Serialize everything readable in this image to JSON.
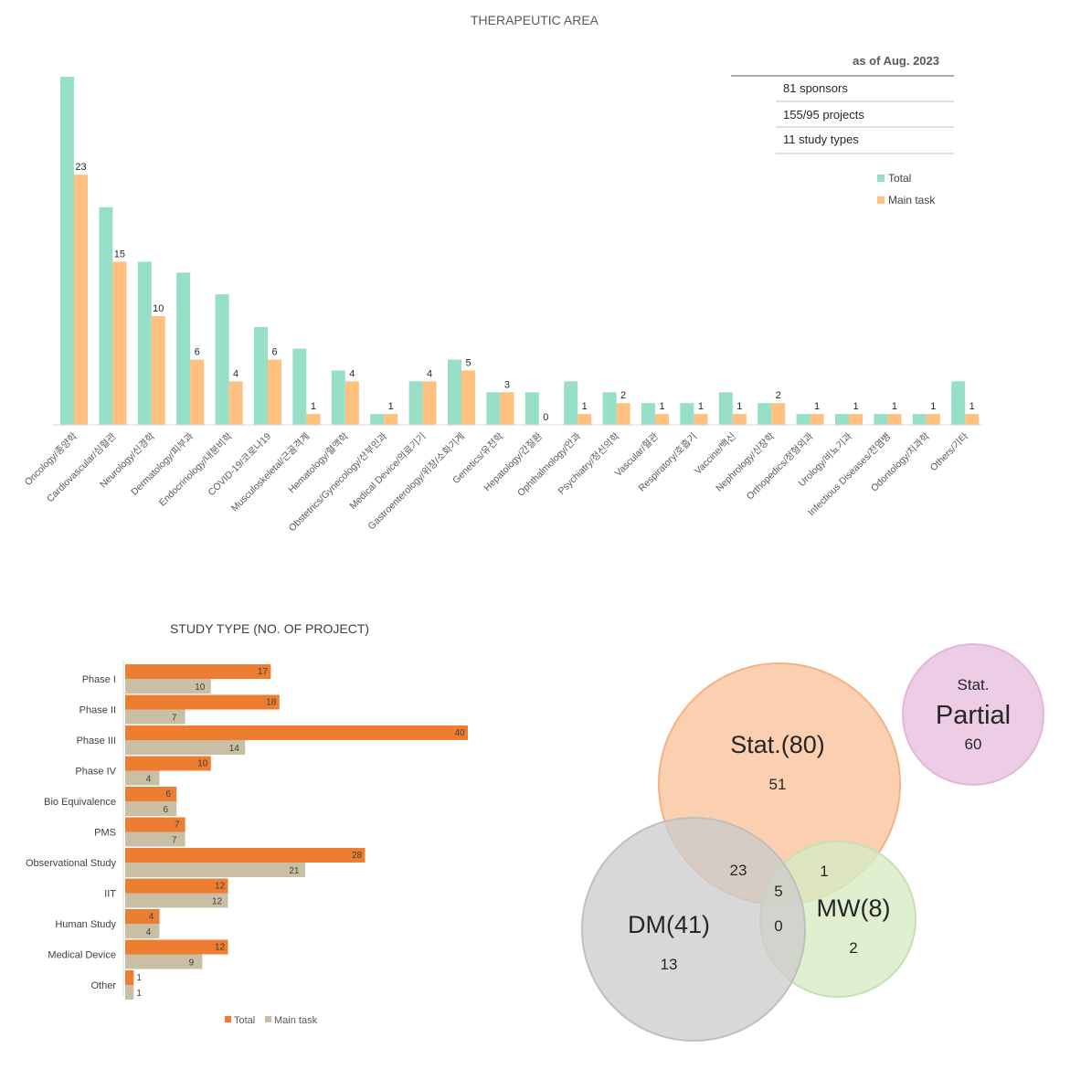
{
  "info": {
    "as_of": "as of Aug. 2023",
    "rows": [
      "81 sponsors",
      "155/95 projects",
      "11 study types"
    ]
  },
  "colors": {
    "total_teal": "#97DFC6",
    "main_orange_light": "#FFC080",
    "total_orange": "#ED7D31",
    "main_tan": "#C9BFA5",
    "axis": "#D9D9D9"
  },
  "chart_data": [
    {
      "type": "bar",
      "title": "THERAPEUTIC AREA",
      "categories": [
        "Oncology/종양학",
        "Cardiovascular/심혈관",
        "Neurology/신경학",
        "Dermatology/피부과",
        "Endocrinology/내분비학",
        "COVID-19/코로나19",
        "Musculoskeletal/근골격계",
        "Hematology/혈액학",
        "Obstetrics/Gynecology/산부인과",
        "Medical Device/의료기기",
        "Gastroenterology/위장/소화기계",
        "Genetics/유전학",
        "Hepatology/간질환",
        "Ophthalmology/안과",
        "Psychiatry/정신의학",
        "Vascular/혈관",
        "Respiratory/호흡기",
        "Vaccine/백신",
        "Nephrology/신장학",
        "Orthopedics/정형외과",
        "Urology/비뇨기과",
        "Infectious Diseases/전염병",
        "Odontology/치과학",
        "Others/기타"
      ],
      "series": [
        {
          "name": "Total",
          "values": [
            32,
            20,
            15,
            14,
            12,
            9,
            7,
            5,
            1,
            4,
            6,
            3,
            3,
            4,
            3,
            2,
            2,
            3,
            2,
            1,
            1,
            1,
            1,
            4
          ]
        },
        {
          "name": "Main task",
          "values": [
            23,
            15,
            10,
            6,
            4,
            6,
            1,
            4,
            1,
            4,
            5,
            3,
            0,
            1,
            2,
            1,
            1,
            1,
            2,
            1,
            1,
            1,
            1,
            1
          ]
        }
      ],
      "data_labels": [
        "23",
        "15",
        "10",
        "6",
        "4",
        "6",
        "1",
        "4",
        "1",
        "4",
        "5",
        "3",
        "0",
        "1",
        "2",
        "1",
        "1",
        "1",
        "2",
        "1",
        "1",
        "1",
        "1",
        "1"
      ],
      "ylim": [
        0,
        33
      ],
      "grid": false,
      "legend": "right",
      "legend_entries": [
        "Total",
        "Main task"
      ]
    },
    {
      "type": "bar",
      "orientation": "horizontal",
      "title": "STUDY TYPE (NO. OF PROJECT)",
      "categories": [
        "Phase I",
        "Phase II",
        "Phase III",
        "Phase IV",
        "Bio Equivalence",
        "PMS",
        "Observational Study",
        "IIT",
        "Human Study",
        "Medical Device",
        "Other"
      ],
      "series": [
        {
          "name": "Total",
          "values": [
            17,
            18,
            40,
            10,
            6,
            7,
            28,
            12,
            4,
            12,
            1
          ]
        },
        {
          "name": "Main task",
          "values": [
            10,
            7,
            14,
            4,
            6,
            7,
            21,
            12,
            4,
            9,
            1
          ]
        }
      ],
      "total_labels": [
        "17",
        "18",
        "40",
        "10",
        "6",
        "7",
        "28",
        "12",
        "4",
        "12",
        "1"
      ],
      "main_labels": [
        "10",
        "7",
        "14",
        "4",
        "6",
        "7",
        "21",
        "12",
        "4",
        "9",
        "1"
      ],
      "xlim": [
        0,
        41
      ],
      "grid": false,
      "legend": "bottom",
      "legend_entries": [
        "Total",
        "Main task"
      ]
    },
    {
      "type": "venn",
      "sets": [
        {
          "label": "Stat.(80)",
          "value": 51,
          "value_text": "51",
          "color": "#FBCBA8",
          "stroke": "#F4B183"
        },
        {
          "label": "DM(41)",
          "value": 13,
          "value_text": "13",
          "color": "#CBCBCB",
          "stroke": "#BFBFBF"
        },
        {
          "label": "MW(8)",
          "value": 2,
          "value_text": "2",
          "color": "#D7EBC3",
          "stroke": "#C5E0B4"
        }
      ],
      "overlaps": [
        {
          "sets": [
            "Stat.",
            "DM"
          ],
          "value": 23,
          "value_text": "23"
        },
        {
          "sets": [
            "Stat.",
            "MW"
          ],
          "value": 1,
          "value_text": "1"
        },
        {
          "sets": [
            "Stat.",
            "DM",
            "MW"
          ],
          "value": 5,
          "value_text": "5"
        },
        {
          "sets": [
            "DM",
            "MW"
          ],
          "value": 0,
          "value_text": "0"
        }
      ],
      "partial": {
        "line1": "Stat.",
        "line2": "Partial",
        "value": 60,
        "value_text": "60",
        "color": "#EDCCE6",
        "stroke": "#E3B6DA"
      }
    }
  ]
}
